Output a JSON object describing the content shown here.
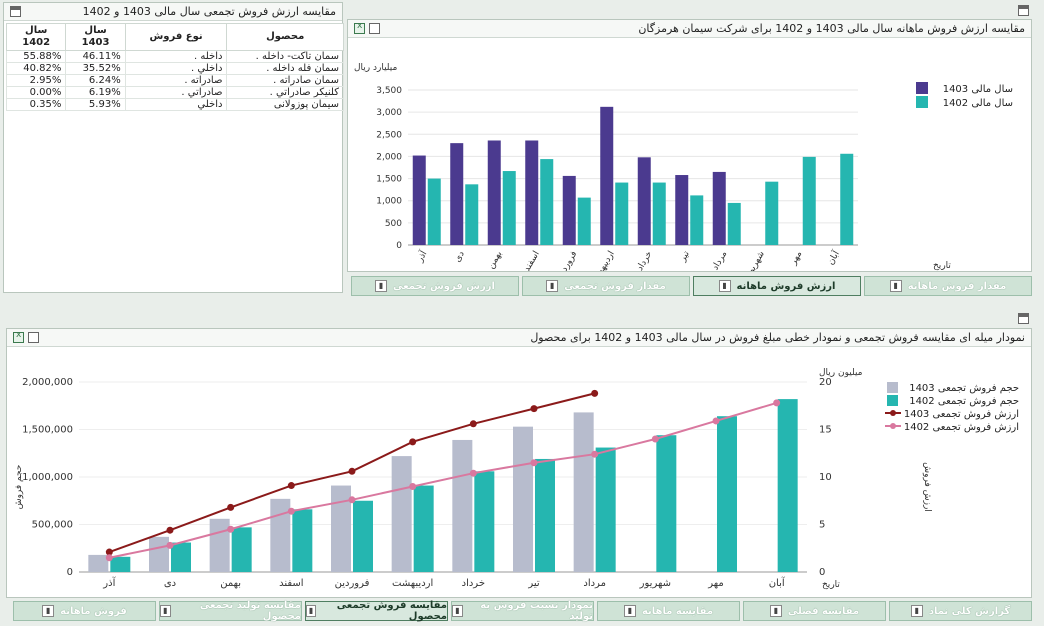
{
  "table_panel": {
    "title": "مقایسه ارزش فروش تجمعی سال مالی 1403 و 1402",
    "headers": [
      "محصول",
      "نوع فروش",
      "سال 1403",
      "سال 1402"
    ],
    "rows": [
      [
        "سمان تاکت- داخله .",
        "داخله .",
        "46.11%",
        "55.88%"
      ],
      [
        "سمان فله داخله .",
        "داخلي .",
        "35.52%",
        "40.82%"
      ],
      [
        "سمان صادراته .",
        "صادراته .",
        "6.24%",
        "2.95%"
      ],
      [
        "کلنيکر صادراتي .",
        "صادراتي .",
        "6.19%",
        "0.00%"
      ],
      [
        "سيمان پوزولانی",
        "داخلي",
        "5.93%",
        "0.35%"
      ]
    ]
  },
  "monthly_panel": {
    "title": "مقایسه ارزش فروش ماهانه سال مالی 1403 و 1402 برای شرکت سیمان هرمزگان",
    "tabs": [
      "مقدار فروش ماهانه",
      "ارزش فروش ماهانه",
      "مقدار فروش تجمعی",
      "ارزش فروش تجمعی"
    ],
    "active_tab": 1
  },
  "cumulative_panel": {
    "title": "نمودار میله ای مقایسه فروش تجمعی و نمودار خطی مبلغ فروش در سال مالی 1403 و 1402 برای محصول",
    "tabs": [
      "گزارش کلی نماد",
      "مقایسه فصلی",
      "مقایسه ماهانه",
      "نمودار نسبت فروش به تولید",
      "مقایسه فروش تجمعی محصول",
      "مقایسه تولید تجمعی محصول",
      "فروش ماهانه"
    ],
    "active_tab": 4
  },
  "colors": {
    "s1403": "#4b3a8f",
    "s1402": "#25b6b0",
    "bar1403": "#b7bccd",
    "line1403": "#8b1a1a",
    "line1402": "#d9789f"
  },
  "chart_data": [
    {
      "type": "bar",
      "title": "مقایسه ارزش فروش ماهانه سال مالی 1403 و 1402 برای شرکت سیمان هرمزگان",
      "ylabel": "میلیارد ریال",
      "xlabel": "تاریخ",
      "ylim": [
        0,
        3500
      ],
      "yticks": [
        "0",
        "500",
        "1,000",
        "1,500",
        "2,000",
        "2,500",
        "3,000",
        "3,500"
      ],
      "categories": [
        "آذر",
        "دی",
        "بهمن",
        "اسفند",
        "فروردین",
        "اردیبهشت",
        "خرداد",
        "تیر",
        "مرداد",
        "شهریور",
        "مهر",
        "آبان"
      ],
      "series": [
        {
          "name": "سال مالی 1403",
          "values": [
            2020,
            2300,
            2360,
            2360,
            1560,
            3120,
            1980,
            1580,
            1650,
            null,
            null,
            null
          ]
        },
        {
          "name": "سال مالی 1402",
          "values": [
            1500,
            1370,
            1670,
            1940,
            1070,
            1410,
            1410,
            1120,
            950,
            1430,
            1990,
            2060
          ]
        }
      ],
      "legend": "top-right"
    },
    {
      "type": "bar",
      "title": "نمودار میله ای مقایسه فروش تجمعی و نمودار خطی مبلغ فروش در سال مالی 1403 و 1402 برای محصول",
      "ylabel": "حجم فروش",
      "y2label": "ارزش فروش",
      "y2unit": "میلیون ریال",
      "xlabel": "تاریخ",
      "ylim": [
        0,
        2000000
      ],
      "yticks": [
        "0",
        "500,000",
        "1,000,000",
        "1,500,000",
        "2,000,000"
      ],
      "y2lim": [
        0,
        20
      ],
      "y2ticks": [
        "0",
        "5",
        "10",
        "15",
        "20"
      ],
      "categories": [
        "آذر",
        "دی",
        "بهمن",
        "اسفند",
        "فروردین",
        "اردیبهشت",
        "خرداد",
        "تیر",
        "مرداد",
        "شهریور",
        "مهر",
        "آبان"
      ],
      "series": [
        {
          "name": "حجم فروش تجمعی 1403",
          "kind": "bar",
          "values": [
            180000,
            370000,
            560000,
            770000,
            910000,
            1220000,
            1390000,
            1530000,
            1680000,
            null,
            null,
            null
          ]
        },
        {
          "name": "حجم فروش تجمعی 1402",
          "kind": "bar",
          "values": [
            160000,
            310000,
            470000,
            660000,
            750000,
            910000,
            1060000,
            1190000,
            1310000,
            1440000,
            1640000,
            1820000
          ]
        },
        {
          "name": "ارزش فروش تجمعی 1403",
          "kind": "line",
          "values": [
            2.1,
            4.4,
            6.8,
            9.1,
            10.6,
            13.7,
            15.6,
            17.2,
            18.8,
            null,
            null,
            null
          ]
        },
        {
          "name": "ارزش فروش تجمعی 1402",
          "kind": "line",
          "values": [
            1.5,
            2.8,
            4.5,
            6.4,
            7.6,
            9.0,
            10.4,
            11.5,
            12.4,
            14.0,
            15.9,
            17.8
          ]
        }
      ],
      "legend": "top-right"
    }
  ]
}
